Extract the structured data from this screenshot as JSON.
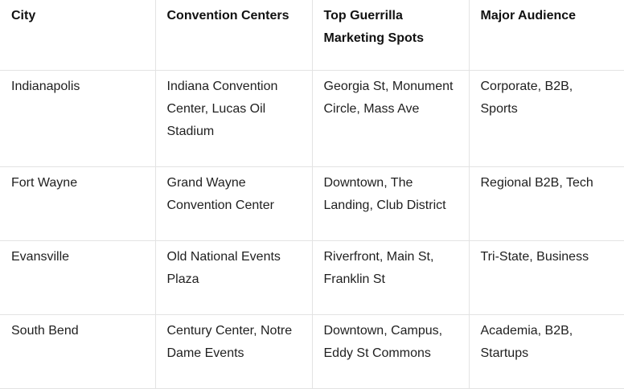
{
  "table": {
    "headers": [
      "City",
      "Convention Centers",
      "Top Guerrilla Marketing Spots",
      "Major Audience"
    ],
    "rows": [
      [
        "Indianapolis",
        "Indiana Convention Center, Lucas Oil Stadium",
        "Georgia St, Monument Circle, Mass Ave",
        "Corporate, B2B, Sports"
      ],
      [
        "Fort Wayne",
        "Grand Wayne Convention Center",
        "Downtown, The Landing, Club District",
        "Regional B2B, Tech"
      ],
      [
        "Evansville",
        "Old National Events Plaza",
        "Riverfront, Main St, Franklin St",
        "Tri-State, Business"
      ],
      [
        "South Bend",
        "Century Center, Notre Dame Events",
        "Downtown, Campus, Eddy St Commons",
        "Academia, B2B, Startups"
      ]
    ]
  }
}
